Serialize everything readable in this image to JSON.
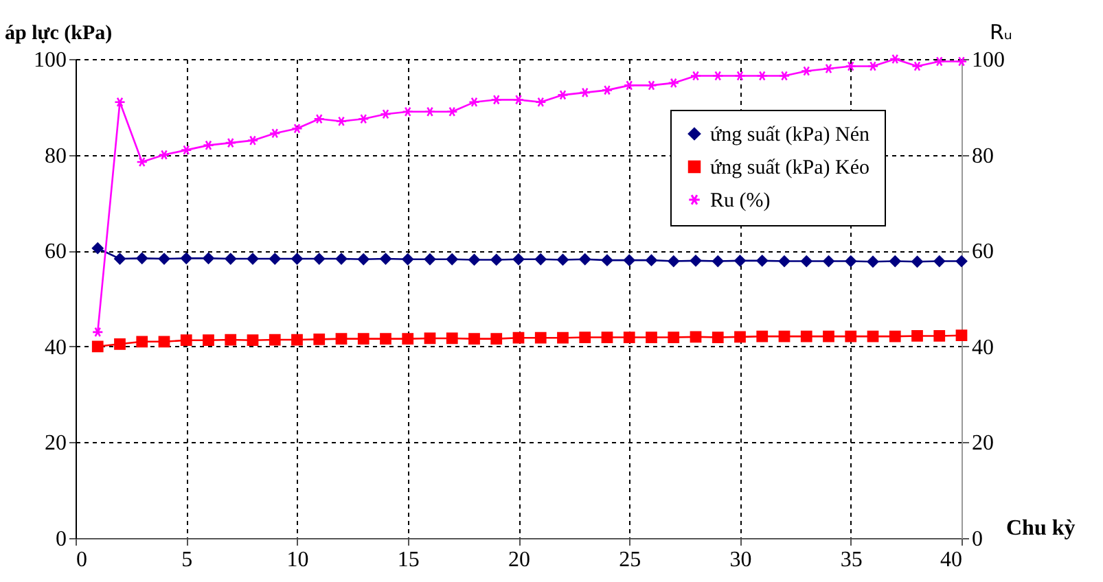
{
  "chart_data": {
    "type": "line",
    "xlabel": "Chu kỳ",
    "ylabel": "áp lực (kPa)",
    "y2label": "Rᵤ",
    "x": [
      1,
      2,
      3,
      4,
      5,
      6,
      7,
      8,
      9,
      10,
      11,
      12,
      13,
      14,
      15,
      16,
      17,
      18,
      19,
      20,
      21,
      22,
      23,
      24,
      25,
      26,
      27,
      28,
      29,
      30,
      31,
      32,
      33,
      34,
      35,
      36,
      37,
      38,
      39,
      40
    ],
    "series": [
      {
        "name": "ứng suất (kPa) Nén",
        "color": "#000080",
        "marker": "diamond",
        "values": [
          60.5,
          58.3,
          58.4,
          58.3,
          58.4,
          58.4,
          58.3,
          58.3,
          58.3,
          58.3,
          58.3,
          58.3,
          58.2,
          58.3,
          58.2,
          58.2,
          58.2,
          58.1,
          58.1,
          58.2,
          58.2,
          58.1,
          58.2,
          58.0,
          58.0,
          58.0,
          57.8,
          57.9,
          57.8,
          57.9,
          57.9,
          57.8,
          57.8,
          57.8,
          57.8,
          57.7,
          57.8,
          57.7,
          57.8,
          57.8
        ]
      },
      {
        "name": "ứng suất (kPa) Kéo",
        "color": "#ff0000",
        "marker": "square",
        "values": [
          40.0,
          40.5,
          41.0,
          41.0,
          41.3,
          41.3,
          41.4,
          41.3,
          41.4,
          41.4,
          41.5,
          41.6,
          41.6,
          41.6,
          41.6,
          41.7,
          41.7,
          41.6,
          41.6,
          41.8,
          41.8,
          41.8,
          41.9,
          41.9,
          41.9,
          41.9,
          41.9,
          42.0,
          41.9,
          42.0,
          42.1,
          42.1,
          42.1,
          42.1,
          42.1,
          42.1,
          42.1,
          42.2,
          42.2,
          42.3
        ]
      },
      {
        "name": "Ru (%)",
        "color": "#ff00ff",
        "marker": "cross",
        "axis": "y2",
        "values": [
          43,
          91,
          78.5,
          80,
          81,
          82,
          82.5,
          83,
          84.5,
          85.5,
          87.5,
          87,
          87.5,
          88.5,
          89,
          89,
          89,
          91,
          91.5,
          91.5,
          91,
          92.5,
          93,
          93.5,
          94.5,
          94.5,
          95,
          96.5,
          96.5,
          96.5,
          96.5,
          96.5,
          97.5,
          98,
          98.5,
          98.5,
          100,
          98.5,
          99.5,
          99.5
        ]
      }
    ],
    "xlim": [
      0,
      40
    ],
    "xticks": [
      0,
      5,
      10,
      15,
      20,
      25,
      30,
      35,
      40
    ],
    "ylim": [
      0,
      100
    ],
    "yticks": [
      0,
      20,
      40,
      60,
      80,
      100
    ],
    "y2lim": [
      0,
      100
    ],
    "y2ticks": [
      0,
      20,
      40,
      60,
      80,
      100
    ],
    "grid": true,
    "legend": "top right",
    "line_style": "solid"
  }
}
